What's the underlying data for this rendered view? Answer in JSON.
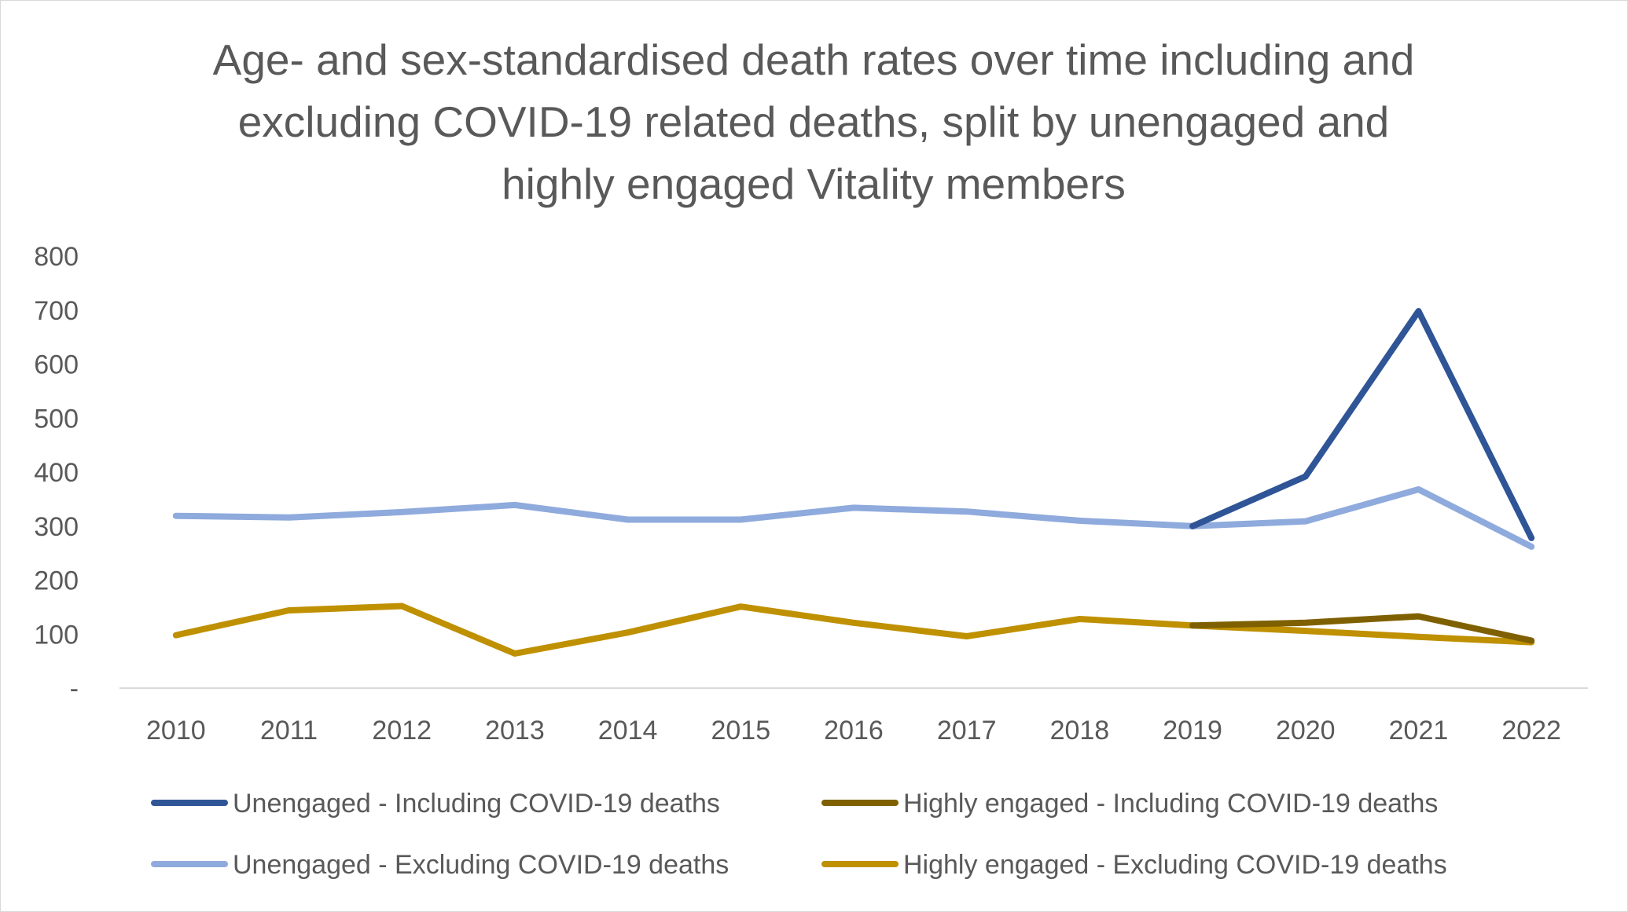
{
  "chart_data": {
    "type": "line",
    "title_lines": [
      "Age- and sex-standardised death rates over time including and",
      "excluding COVID-19 related deaths, split by unengaged and",
      "highly engaged Vitality members"
    ],
    "x": [
      "2010",
      "2011",
      "2012",
      "2013",
      "2014",
      "2015",
      "2016",
      "2017",
      "2018",
      "2019",
      "2020",
      "2021",
      "2022"
    ],
    "y_ticks": [
      {
        "value": 0,
        "label": "-"
      },
      {
        "value": 100,
        "label": "100"
      },
      {
        "value": 200,
        "label": "200"
      },
      {
        "value": 300,
        "label": "300"
      },
      {
        "value": 400,
        "label": "400"
      },
      {
        "value": 500,
        "label": "500"
      },
      {
        "value": 600,
        "label": "600"
      },
      {
        "value": 700,
        "label": "700"
      },
      {
        "value": 800,
        "label": "800"
      }
    ],
    "ylim": [
      0,
      800
    ],
    "grid": false,
    "legend_position": "bottom",
    "series": [
      {
        "name": "Unengaged - Including COVID-19 deaths",
        "color": "#2f5597",
        "values": [
          null,
          null,
          null,
          null,
          null,
          null,
          null,
          null,
          null,
          300,
          392,
          698,
          278
        ]
      },
      {
        "name": "Highly engaged - Including COVID-19 deaths",
        "color": "#7f6000",
        "values": [
          null,
          null,
          null,
          null,
          null,
          null,
          null,
          null,
          null,
          116,
          121,
          133,
          88
        ]
      },
      {
        "name": "Unengaged - Excluding COVID-19 deaths",
        "color": "#8faadc",
        "values": [
          319,
          316,
          326,
          339,
          312,
          312,
          334,
          327,
          310,
          300,
          309,
          368,
          262
        ]
      },
      {
        "name": "Highly engaged - Excluding COVID-19 deaths",
        "color": "#bf9000",
        "values": [
          98,
          144,
          152,
          64,
          103,
          151,
          121,
          96,
          128,
          116,
          106,
          95,
          85
        ]
      }
    ]
  }
}
